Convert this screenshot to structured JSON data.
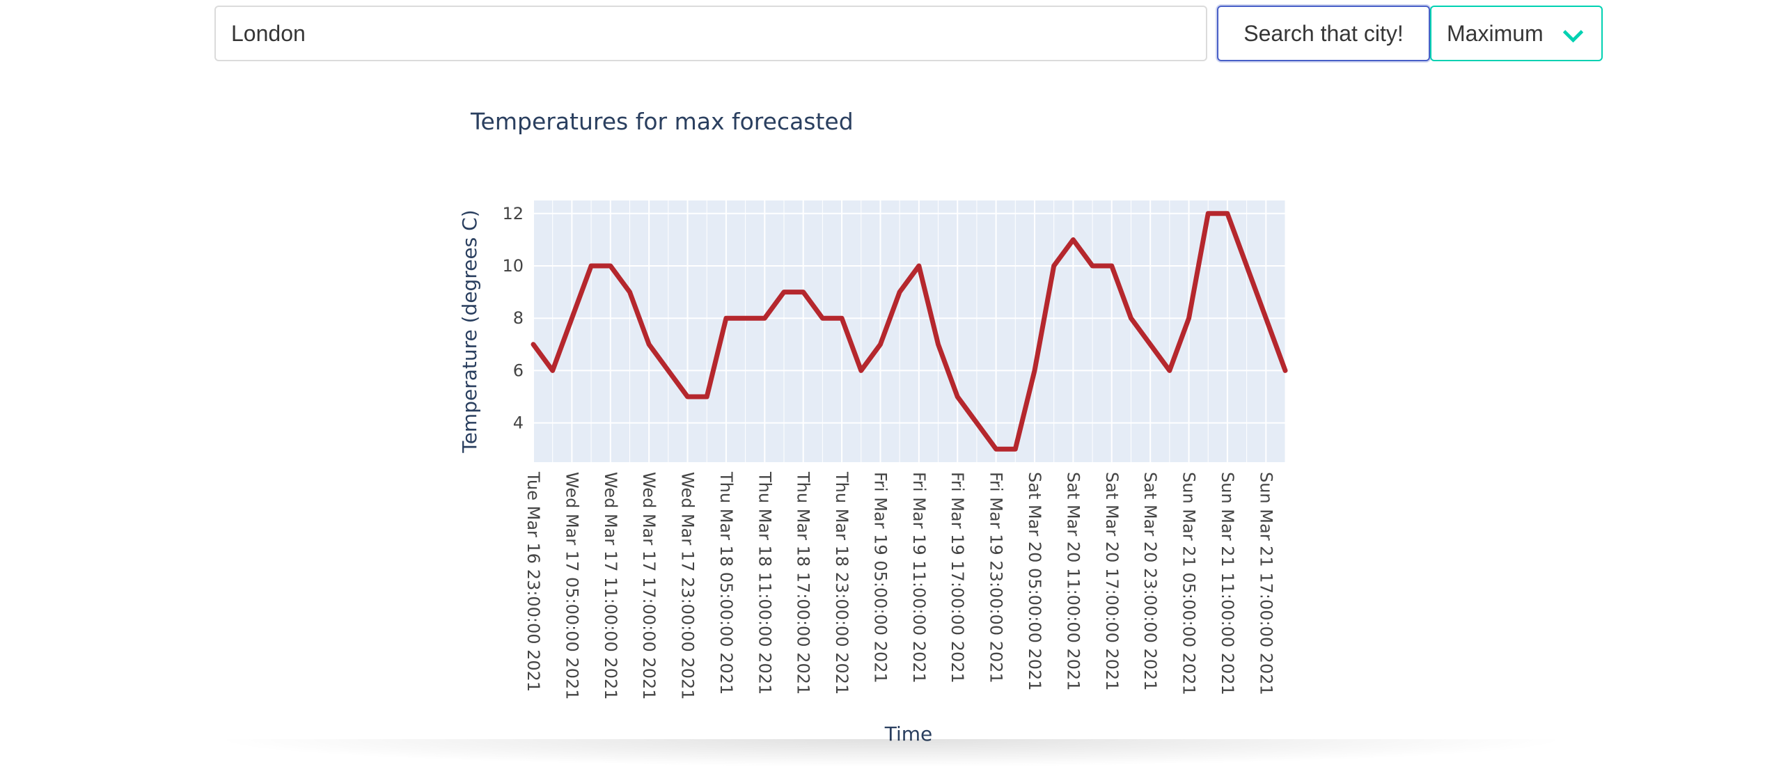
{
  "search": {
    "value": "London",
    "button_label": "Search that city!"
  },
  "mode_select": {
    "selected": "Maximum"
  },
  "chart_data": {
    "type": "line",
    "title": "Temperatures for max forecasted",
    "xlabel": "Time",
    "ylabel": "Temperature (degrees C)",
    "ylim": [
      2.5,
      12.5
    ],
    "yticks": [
      4,
      6,
      8,
      10,
      12
    ],
    "grid": true,
    "line_color": "#b5272d",
    "plot_bg": "#e5ecf6",
    "x": [
      "Tue Mar 16 23:00:00 2021",
      "Wed Mar 17 02:00:00 2021",
      "Wed Mar 17 05:00:00 2021",
      "Wed Mar 17 08:00:00 2021",
      "Wed Mar 17 11:00:00 2021",
      "Wed Mar 17 14:00:00 2021",
      "Wed Mar 17 17:00:00 2021",
      "Wed Mar 17 20:00:00 2021",
      "Wed Mar 17 23:00:00 2021",
      "Thu Mar 18 02:00:00 2021",
      "Thu Mar 18 05:00:00 2021",
      "Thu Mar 18 08:00:00 2021",
      "Thu Mar 18 11:00:00 2021",
      "Thu Mar 18 14:00:00 2021",
      "Thu Mar 18 17:00:00 2021",
      "Thu Mar 18 20:00:00 2021",
      "Thu Mar 18 23:00:00 2021",
      "Fri Mar 19 02:00:00 2021",
      "Fri Mar 19 05:00:00 2021",
      "Fri Mar 19 08:00:00 2021",
      "Fri Mar 19 11:00:00 2021",
      "Fri Mar 19 14:00:00 2021",
      "Fri Mar 19 17:00:00 2021",
      "Fri Mar 19 20:00:00 2021",
      "Fri Mar 19 23:00:00 2021",
      "Sat Mar 20 02:00:00 2021",
      "Sat Mar 20 05:00:00 2021",
      "Sat Mar 20 08:00:00 2021",
      "Sat Mar 20 11:00:00 2021",
      "Sat Mar 20 14:00:00 2021",
      "Sat Mar 20 17:00:00 2021",
      "Sat Mar 20 20:00:00 2021",
      "Sat Mar 20 23:00:00 2021",
      "Sun Mar 21 02:00:00 2021",
      "Sun Mar 21 05:00:00 2021",
      "Sun Mar 21 08:00:00 2021",
      "Sun Mar 21 11:00:00 2021",
      "Sun Mar 21 14:00:00 2021",
      "Sun Mar 21 17:00:00 2021",
      "Sun Mar 21 20:00:00 2021"
    ],
    "y": [
      7,
      6,
      8,
      10,
      10,
      9,
      7,
      6,
      5,
      5,
      8,
      8,
      8,
      9,
      9,
      8,
      8,
      6,
      7,
      9,
      10,
      7,
      5,
      4,
      3,
      3,
      6,
      10,
      11,
      10,
      10,
      8,
      7,
      6,
      8,
      12,
      12,
      10,
      8,
      6
    ],
    "xtick_labels": [
      "Tue Mar 16 23:00:00 2021",
      "Wed Mar 17 05:00:00 2021",
      "Wed Mar 17 11:00:00 2021",
      "Wed Mar 17 17:00:00 2021",
      "Wed Mar 17 23:00:00 2021",
      "Thu Mar 18 05:00:00 2021",
      "Thu Mar 18 11:00:00 2021",
      "Thu Mar 18 17:00:00 2021",
      "Thu Mar 18 23:00:00 2021",
      "Fri Mar 19 05:00:00 2021",
      "Fri Mar 19 11:00:00 2021",
      "Fri Mar 19 17:00:00 2021",
      "Fri Mar 19 23:00:00 2021",
      "Sat Mar 20 05:00:00 2021",
      "Sat Mar 20 11:00:00 2021",
      "Sat Mar 20 17:00:00 2021",
      "Sat Mar 20 23:00:00 2021",
      "Sun Mar 21 05:00:00 2021",
      "Sun Mar 21 11:00:00 2021",
      "Sun Mar 21 17:00:00 2021"
    ]
  }
}
